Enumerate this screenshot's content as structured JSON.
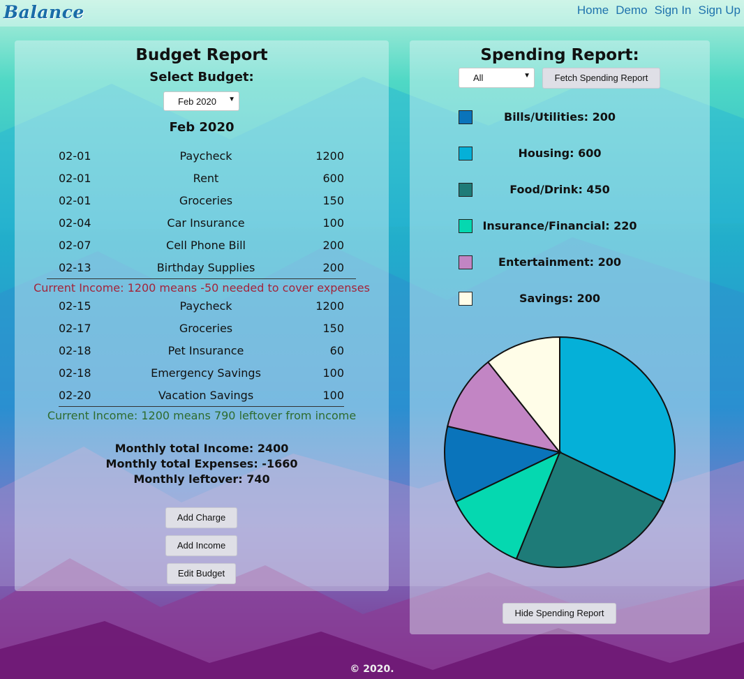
{
  "nav": {
    "brand": "Balance",
    "links": [
      "Home",
      "Demo",
      "Sign In",
      "Sign Up"
    ]
  },
  "budget": {
    "title": "Budget Report",
    "select_label": "Select Budget:",
    "selected_budget": "Feb 2020",
    "month_heading": "Feb 2020",
    "period1_rows": [
      {
        "date": "02-01",
        "name": "Paycheck",
        "amount": "1200"
      },
      {
        "date": "02-01",
        "name": "Rent",
        "amount": "600"
      },
      {
        "date": "02-01",
        "name": "Groceries",
        "amount": "150"
      },
      {
        "date": "02-04",
        "name": "Car Insurance",
        "amount": "100"
      },
      {
        "date": "02-07",
        "name": "Cell Phone Bill",
        "amount": "200"
      },
      {
        "date": "02-13",
        "name": "Birthday Supplies",
        "amount": "200"
      }
    ],
    "period1_note": "Current Income: 1200 means -50 needed to cover expenses",
    "period2_rows": [
      {
        "date": "02-15",
        "name": "Paycheck",
        "amount": "1200"
      },
      {
        "date": "02-17",
        "name": "Groceries",
        "amount": "150"
      },
      {
        "date": "02-18",
        "name": "Pet Insurance",
        "amount": "60"
      },
      {
        "date": "02-18",
        "name": "Emergency Savings",
        "amount": "100"
      },
      {
        "date": "02-20",
        "name": "Vacation Savings",
        "amount": "100"
      }
    ],
    "period2_note": "Current Income: 1200 means 790 leftover from income",
    "totals": {
      "income": "Monthly total Income: 2400",
      "expenses": "Monthly total Expenses: -1660",
      "leftover": "Monthly leftover: 740"
    },
    "buttons": {
      "add_charge": "Add Charge",
      "add_income": "Add Income",
      "edit_budget": "Edit Budget"
    },
    "colors": {
      "negative_note": "#a3243a",
      "positive_note": "#2e6b2e"
    }
  },
  "spending": {
    "title": "Spending Report:",
    "filter_value": "All",
    "fetch_button": "Fetch Spending Report",
    "hide_button": "Hide Spending Report",
    "legend": [
      {
        "label": "Bills/Utilities: 200",
        "color": "#0a74bb"
      },
      {
        "label": "Housing: 600",
        "color": "#05b0d8"
      },
      {
        "label": "Food/Drink: 450",
        "color": "#1e7b78"
      },
      {
        "label": "Insurance/Financial: 220",
        "color": "#05d8b0"
      },
      {
        "label": "Entertainment: 200",
        "color": "#c285c4"
      },
      {
        "label": "Savings: 200",
        "color": "#fffde8"
      }
    ]
  },
  "chart_data": {
    "type": "pie",
    "categories": [
      "Housing",
      "Food/Drink",
      "Insurance/Financial",
      "Bills/Utilities",
      "Entertainment",
      "Savings"
    ],
    "values": [
      600,
      450,
      220,
      200,
      200,
      200
    ],
    "colors": [
      "#05b0d8",
      "#1e7b78",
      "#05d8b0",
      "#0a74bb",
      "#c285c4",
      "#fffde8"
    ]
  },
  "footer": {
    "text": "© 2020."
  }
}
